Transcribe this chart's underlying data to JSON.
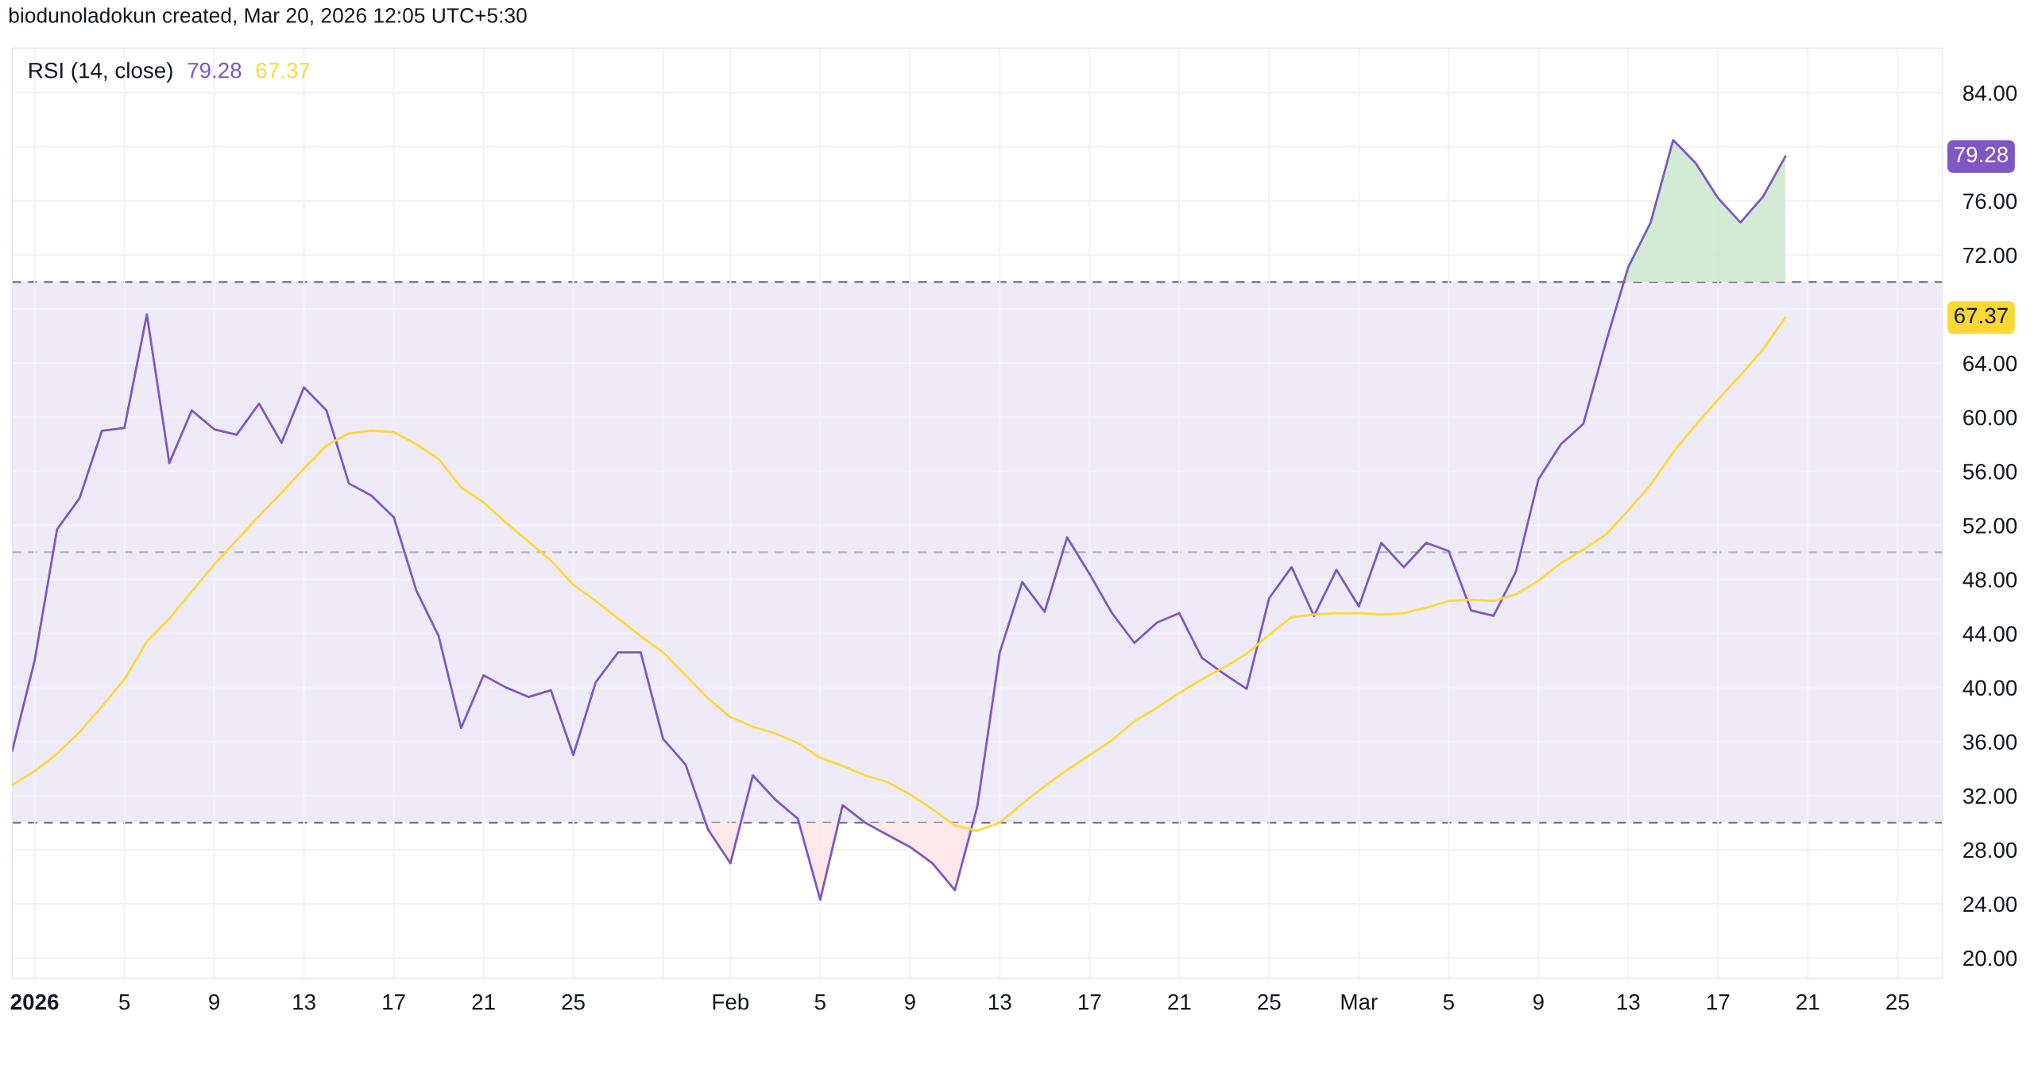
{
  "chart_data": {
    "type": "line",
    "title": "RSI (14, close)",
    "x": [
      "2025-12-31",
      "2026-01-01",
      "2026-01-02",
      "2026-01-03",
      "2026-01-04",
      "2026-01-05",
      "2026-01-06",
      "2026-01-07",
      "2026-01-08",
      "2026-01-09",
      "2026-01-10",
      "2026-01-11",
      "2026-01-12",
      "2026-01-13",
      "2026-01-14",
      "2026-01-15",
      "2026-01-16",
      "2026-01-17",
      "2026-01-18",
      "2026-01-19",
      "2026-01-20",
      "2026-01-21",
      "2026-01-22",
      "2026-01-23",
      "2026-01-24",
      "2026-01-25",
      "2026-01-26",
      "2026-01-27",
      "2026-01-28",
      "2026-01-29",
      "2026-01-30",
      "2026-01-31",
      "2026-02-01",
      "2026-02-02",
      "2026-02-03",
      "2026-02-04",
      "2026-02-05",
      "2026-02-06",
      "2026-02-07",
      "2026-02-08",
      "2026-02-09",
      "2026-02-10",
      "2026-02-11",
      "2026-02-12",
      "2026-02-13",
      "2026-02-14",
      "2026-02-15",
      "2026-02-16",
      "2026-02-17",
      "2026-02-18",
      "2026-02-19",
      "2026-02-20",
      "2026-02-21",
      "2026-02-22",
      "2026-02-23",
      "2026-02-24",
      "2026-02-25",
      "2026-02-26",
      "2026-02-27",
      "2026-02-28",
      "2026-03-01",
      "2026-03-02",
      "2026-03-03",
      "2026-03-04",
      "2026-03-05",
      "2026-03-06",
      "2026-03-07",
      "2026-03-08",
      "2026-03-09",
      "2026-03-10",
      "2026-03-11",
      "2026-03-12",
      "2026-03-13",
      "2026-03-14",
      "2026-03-15",
      "2026-03-16",
      "2026-03-17",
      "2026-03-18",
      "2026-03-19",
      "2026-03-20"
    ],
    "series": [
      {
        "color": "#7e57c2",
        "values": [
          35.3,
          42.0,
          51.7,
          54.0,
          59.0,
          59.2,
          67.6,
          56.6,
          60.5,
          59.1,
          58.7,
          61.0,
          58.1,
          62.2,
          60.5,
          55.1,
          54.2,
          52.6,
          47.2,
          43.8,
          37.0,
          40.9,
          40.0,
          39.3,
          39.8,
          35.0,
          40.4,
          42.6,
          42.6,
          36.2,
          34.3,
          29.5,
          27.0,
          33.5,
          31.7,
          30.3,
          24.3,
          31.3,
          30.0,
          29.1,
          28.2,
          27.0,
          25.0,
          31.2,
          42.6,
          47.8,
          45.6,
          51.1,
          48.4,
          45.5,
          43.3,
          44.8,
          45.5,
          42.2,
          41.0,
          39.9,
          46.6,
          48.9,
          45.3,
          48.7,
          46.0,
          50.7,
          48.9,
          50.7,
          50.1,
          45.7,
          45.3,
          48.6,
          55.4,
          58.0,
          59.5,
          65.5,
          71.1,
          74.4,
          80.5,
          78.8,
          76.2,
          74.4,
          76.3,
          79.28
        ]
      },
      {
        "color": "#fdd835",
        "values": [
          32.8,
          33.8,
          35.1,
          36.7,
          38.6,
          40.6,
          43.4,
          45.1,
          47.1,
          49.1,
          50.9,
          52.7,
          54.4,
          56.2,
          57.9,
          58.8,
          59.0,
          58.9,
          58.0,
          56.9,
          54.8,
          53.7,
          52.2,
          50.8,
          49.4,
          47.6,
          46.4,
          45.1,
          43.8,
          42.6,
          40.9,
          39.2,
          37.8,
          37.1,
          36.6,
          35.9,
          34.8,
          34.2,
          33.5,
          33.0,
          32.1,
          31.0,
          29.8,
          29.4,
          30.0,
          31.4,
          32.7,
          33.9,
          35.0,
          36.1,
          37.5,
          38.5,
          39.6,
          40.6,
          41.5,
          42.5,
          43.9,
          45.2,
          45.4,
          45.5,
          45.5,
          45.4,
          45.5,
          45.9,
          46.4,
          46.5,
          46.4,
          46.9,
          47.9,
          49.2,
          50.2,
          51.3,
          53.1,
          55.0,
          57.4,
          59.4,
          61.3,
          63.1,
          65.0,
          67.37
        ]
      }
    ],
    "xlim": [
      "2025-12-31",
      "2026-03-27"
    ],
    "xticks": [
      {
        "value": "2026-01-01",
        "label": "2026"
      },
      {
        "value": "2026-01-05",
        "label": "5"
      },
      {
        "value": "2026-01-09",
        "label": "9"
      },
      {
        "value": "2026-01-13",
        "label": "13"
      },
      {
        "value": "2026-01-17",
        "label": "17"
      },
      {
        "value": "2026-01-21",
        "label": "21"
      },
      {
        "value": "2026-01-25",
        "label": "25"
      },
      {
        "value": "2026-01-29",
        "label": null
      },
      {
        "value": "2026-02-01",
        "label": "Feb"
      },
      {
        "value": "2026-02-05",
        "label": "5"
      },
      {
        "value": "2026-02-09",
        "label": "9"
      },
      {
        "value": "2026-02-13",
        "label": "13"
      },
      {
        "value": "2026-02-17",
        "label": "17"
      },
      {
        "value": "2026-02-21",
        "label": "21"
      },
      {
        "value": "2026-02-25",
        "label": "25"
      },
      {
        "value": "2026-03-01",
        "label": "Mar"
      },
      {
        "value": "2026-03-05",
        "label": "5"
      },
      {
        "value": "2026-03-09",
        "label": "9"
      },
      {
        "value": "2026-03-13",
        "label": "13"
      },
      {
        "value": "2026-03-17",
        "label": "17"
      },
      {
        "value": "2026-03-21",
        "label": "21"
      },
      {
        "value": "2026-03-25",
        "label": "25"
      }
    ],
    "ylim": [
      18.5,
      87.3
    ],
    "yticks": [
      {
        "value": 20,
        "label": "20.00"
      },
      {
        "value": 24,
        "label": "24.00"
      },
      {
        "value": 28,
        "label": "28.00"
      },
      {
        "value": 32,
        "label": "32.00"
      },
      {
        "value": 36,
        "label": "36.00"
      },
      {
        "value": 40,
        "label": "40.00"
      },
      {
        "value": 44,
        "label": "44.00"
      },
      {
        "value": 48,
        "label": "48.00"
      },
      {
        "value": 52,
        "label": "52.00"
      },
      {
        "value": 56,
        "label": "56.00"
      },
      {
        "value": 60,
        "label": "60.00"
      },
      {
        "value": 64,
        "label": "64.00"
      },
      {
        "value": 68,
        "label": null
      },
      {
        "value": 72,
        "label": "72.00"
      },
      {
        "value": 76,
        "label": "76.00"
      },
      {
        "value": 80,
        "label": null
      },
      {
        "value": 84,
        "label": "84.00"
      }
    ],
    "ref_lines": [
      {
        "axis": "y",
        "value": 70,
        "color": "#787b86",
        "line_style": "dashed"
      },
      {
        "axis": "y",
        "value": 50,
        "color": "#b2b5be",
        "line_style": "dashed"
      },
      {
        "axis": "y",
        "value": 30,
        "color": "#787b86",
        "line_style": "dashed"
      }
    ],
    "bands": [
      {
        "axis": "y",
        "from": 30,
        "to": 70,
        "color": "#efeaf7"
      }
    ],
    "grid": true,
    "line_style": "solid",
    "annotations": [
      "biodunoladokun created, Mar 20, 2026 12:05 UTC+5:30",
      "79.28",
      "67.37"
    ]
  }
}
